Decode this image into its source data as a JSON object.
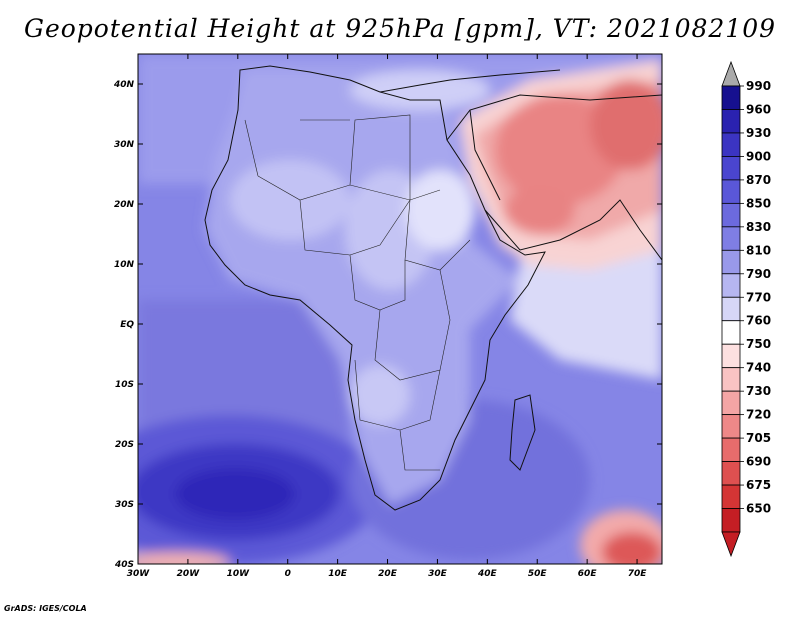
{
  "title": "Geopotential Height at 925hPa [gpm], VT: 2021082109",
  "credit": "GrADS: IGES/COLA",
  "map": {
    "region": "Africa and Middle East",
    "variable": "Geopotential Height",
    "level": "925hPa",
    "units": "gpm",
    "valid_time": "2021082109",
    "lon_range": [
      -30,
      75
    ],
    "lat_range": [
      -40,
      45
    ],
    "lon_ticks": [
      "30W",
      "20W",
      "10W",
      "0",
      "10E",
      "20E",
      "30E",
      "40E",
      "50E",
      "60E",
      "70E"
    ],
    "lat_ticks": [
      "40N",
      "30N",
      "20N",
      "10N",
      "EQ",
      "10S",
      "20S",
      "30S",
      "40S"
    ]
  },
  "colorbar": {
    "labels": [
      "990",
      "960",
      "930",
      "900",
      "870",
      "850",
      "830",
      "810",
      "790",
      "770",
      "760",
      "750",
      "740",
      "730",
      "720",
      "705",
      "690",
      "675",
      "650"
    ],
    "colors": [
      "#16108f",
      "#2a22b0",
      "#3b34c2",
      "#4a45cf",
      "#5a57d8",
      "#6c6ade",
      "#7f7ee4",
      "#9999ea",
      "#b6b6f1",
      "#d6d6f7",
      "#ffffff",
      "#fde0e0",
      "#f9c3c3",
      "#f4a5a5",
      "#ee8888",
      "#e76c6c",
      "#de5050",
      "#d43535",
      "#c41e24"
    ],
    "top_arrow_color": "#aaaaaa"
  }
}
